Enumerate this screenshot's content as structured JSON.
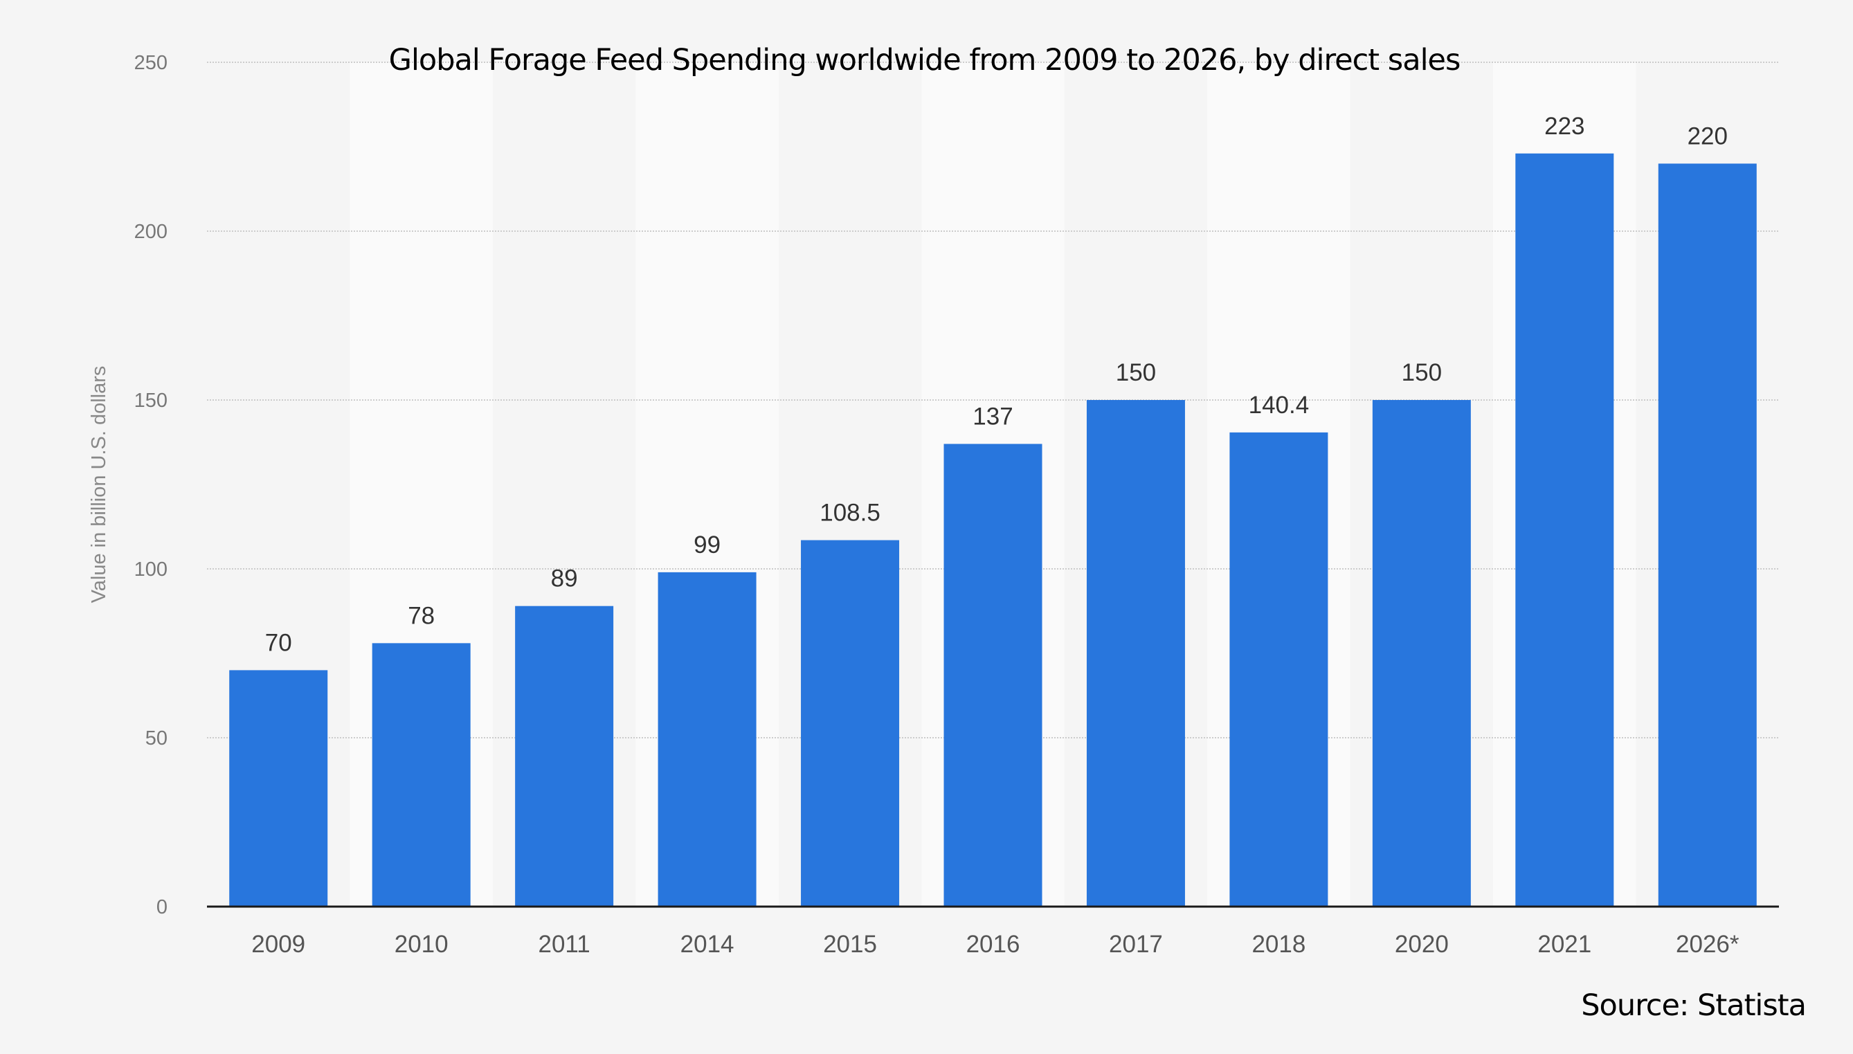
{
  "chart_data": {
    "type": "bar",
    "title": "Global Forage Feed Spending worldwide from 2009 to 2026, by direct sales",
    "source": "Source: Statista",
    "xlabel": "",
    "ylabel": "Value in billion U.S. dollars",
    "ylim": [
      0,
      250
    ],
    "yticks": [
      0,
      50,
      100,
      150,
      200,
      250
    ],
    "grid": true,
    "categories": [
      "2009",
      "2010",
      "2011",
      "2014",
      "2015",
      "2016",
      "2017",
      "2018",
      "2020",
      "2021",
      "2026*"
    ],
    "values": [
      70,
      78,
      89,
      99,
      108.5,
      137,
      150,
      140.4,
      150,
      223,
      220
    ],
    "data_labels": [
      "70",
      "78",
      "89",
      "99",
      "108.5",
      "137",
      "150",
      "140.4",
      "150",
      "223",
      "220"
    ],
    "colors": {
      "bar": "#2876dd",
      "background": "#f5f5f5",
      "band": "#fafafa",
      "axis": "#1a1a1a",
      "grid": "#cccccc"
    }
  }
}
